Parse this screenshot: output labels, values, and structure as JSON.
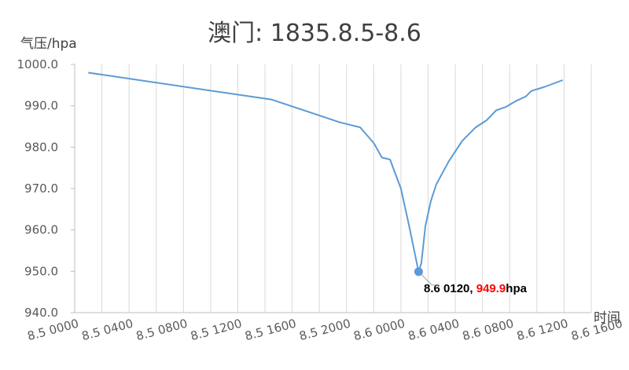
{
  "chart_data": {
    "type": "line",
    "title": "澳门: 1835.8.5-8.6",
    "ylabel": "气压/hpa",
    "xlabel": "时间",
    "ylim": [
      940,
      1000
    ],
    "y_ticks": [
      "1000.0",
      "990.0",
      "980.0",
      "970.0",
      "960.0",
      "950.0",
      "940.0"
    ],
    "x_ticks": [
      "8.5 0000",
      "8.5 0400",
      "8.5 0800",
      "8.5 1200",
      "8.5 1600",
      "8.5 2000",
      "8.6 0000",
      "8.6 0400",
      "8.6 0800",
      "8.6 1200",
      "8.6 1600"
    ],
    "grid": "vertical",
    "x_unit": "hours from 8.5 0000",
    "series": [
      {
        "color": "#5B9BD5",
        "x": [
          1,
          14.5,
          19.5,
          21,
          22,
          22.6,
          23.2,
          24,
          24.6,
          25.3,
          25.5,
          25.8,
          26.2,
          26.6,
          27.5,
          28.5,
          29.5,
          30.3,
          31,
          31.7,
          32.5,
          33.2,
          33.6,
          34.5,
          35.9
        ],
        "y": [
          998,
          991.5,
          986,
          984.8,
          981,
          977.5,
          977,
          970,
          961,
          949.9,
          952,
          961,
          967,
          971,
          976.5,
          981.5,
          984.8,
          986.5,
          988.9,
          989.7,
          991.2,
          992.3,
          993.6,
          994.5,
          996.2
        ]
      }
    ],
    "annotation": {
      "x": 25.3,
      "y": 949.9,
      "label_black": "8.6 0120, ",
      "label_red": "949.9",
      "label_suffix": "hpa",
      "red_color": "#FF0000"
    }
  }
}
